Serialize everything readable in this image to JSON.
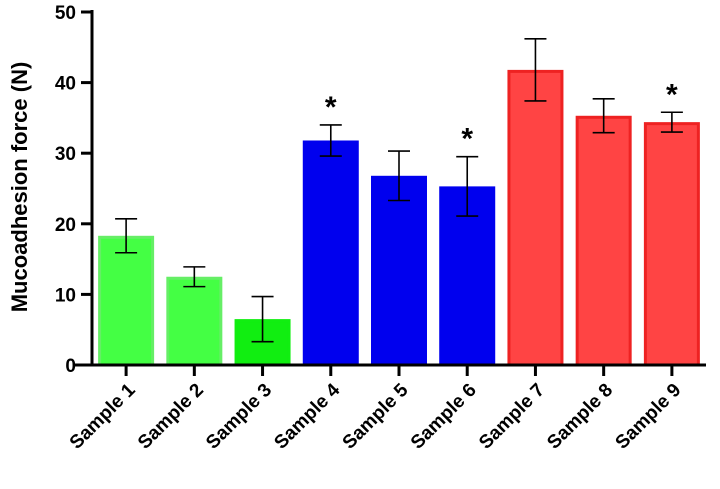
{
  "chart_data": {
    "type": "bar",
    "title": "",
    "xlabel": "",
    "ylabel": "Mucoadhesion force (N)",
    "ylim": [
      0,
      50
    ],
    "yticks": [
      0,
      10,
      20,
      30,
      40,
      50
    ],
    "grid": false,
    "categories": [
      "Sample 1",
      "Sample 2",
      "Sample 3",
      "Sample 4",
      "Sample 5",
      "Sample 6",
      "Sample 7",
      "Sample 8",
      "Sample 9"
    ],
    "values": [
      18.3,
      12.5,
      6.5,
      31.8,
      26.8,
      25.3,
      41.8,
      35.3,
      34.4
    ],
    "errors": [
      2.4,
      1.4,
      3.2,
      2.2,
      3.5,
      4.2,
      4.4,
      2.4,
      1.4
    ],
    "significance": [
      "",
      "",
      "",
      "*",
      "",
      "*",
      "",
      "",
      "*"
    ],
    "fill_colors": [
      "#44ff44",
      "#44ff44",
      "#11ee11",
      "#0000ee",
      "#0000ee",
      "#0000ee",
      "#ff4444",
      "#ff4444",
      "#ff4444"
    ],
    "edge_colors": [
      "#66ee66",
      "#66ee66",
      "#11ee11",
      "#0000ee",
      "#0000ee",
      "#0000ee",
      "#ee2222",
      "#ee2222",
      "#ee2222"
    ]
  }
}
